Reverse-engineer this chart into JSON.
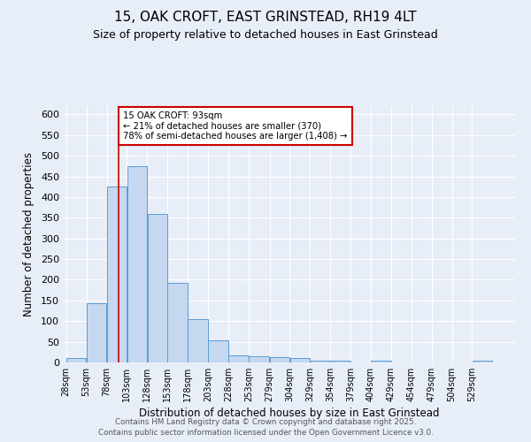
{
  "title1": "15, OAK CROFT, EAST GRINSTEAD, RH19 4LT",
  "title2": "Size of property relative to detached houses in East Grinstead",
  "xlabel": "Distribution of detached houses by size in East Grinstead",
  "ylabel": "Number of detached properties",
  "bar_labels": [
    "28sqm",
    "53sqm",
    "78sqm",
    "103sqm",
    "128sqm",
    "153sqm",
    "178sqm",
    "203sqm",
    "228sqm",
    "253sqm",
    "279sqm",
    "304sqm",
    "329sqm",
    "354sqm",
    "379sqm",
    "404sqm",
    "429sqm",
    "454sqm",
    "479sqm",
    "504sqm",
    "529sqm"
  ],
  "bar_values": [
    10,
    143,
    425,
    475,
    360,
    192,
    105,
    53,
    18,
    14,
    12,
    10,
    4,
    5,
    1,
    4,
    0,
    0,
    0,
    0,
    4
  ],
  "bar_edges": [
    28,
    53,
    78,
    103,
    128,
    153,
    178,
    203,
    228,
    253,
    279,
    304,
    329,
    354,
    379,
    404,
    429,
    454,
    479,
    504,
    529,
    554
  ],
  "bar_color": "#c5d8f0",
  "bar_edge_color": "#5b9bd5",
  "background_color": "#e8eef8",
  "grid_color": "#ffffff",
  "red_line_x": 93,
  "annotation_text": "15 OAK CROFT: 93sqm\n← 21% of detached houses are smaller (370)\n78% of semi-detached houses are larger (1,408) →",
  "annotation_box_color": "#ffffff",
  "annotation_box_edge_color": "#cc0000",
  "ylim": [
    0,
    620
  ],
  "yticks": [
    0,
    50,
    100,
    150,
    200,
    250,
    300,
    350,
    400,
    450,
    500,
    550,
    600
  ],
  "footer1": "Contains HM Land Registry data © Crown copyright and database right 2025.",
  "footer2": "Contains public sector information licensed under the Open Government Licence v3.0."
}
